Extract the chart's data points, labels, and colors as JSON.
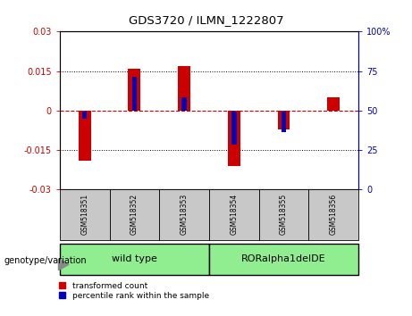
{
  "title": "GDS3720 / ILMN_1222807",
  "samples": [
    "GSM518351",
    "GSM518352",
    "GSM518353",
    "GSM518354",
    "GSM518355",
    "GSM518356"
  ],
  "red_values": [
    -0.019,
    0.016,
    0.017,
    -0.021,
    -0.007,
    0.005
  ],
  "blue_values": [
    -0.003,
    0.013,
    0.005,
    -0.013,
    -0.008,
    0.0
  ],
  "ylim": [
    -0.03,
    0.03
  ],
  "y2lim": [
    0,
    100
  ],
  "yticks": [
    -0.03,
    -0.015,
    0,
    0.015,
    0.03
  ],
  "ytick_labels": [
    "-0.03",
    "-0.015",
    "0",
    "0.015",
    "0.03"
  ],
  "y2ticks": [
    0,
    25,
    50,
    75,
    100
  ],
  "y2tick_labels": [
    "0",
    "25",
    "50",
    "75",
    "100%"
  ],
  "red_color": "#CC0000",
  "blue_color": "#0000BB",
  "zero_line_color": "#CC0000",
  "tick_area_color": "#C8C8C8",
  "green_color": "#90EE90",
  "legend_red_label": "transformed count",
  "legend_blue_label": "percentile rank within the sample",
  "genotype_label": "genotype/variation",
  "group1_label": "wild type",
  "group2_label": "RORalpha1delDE"
}
